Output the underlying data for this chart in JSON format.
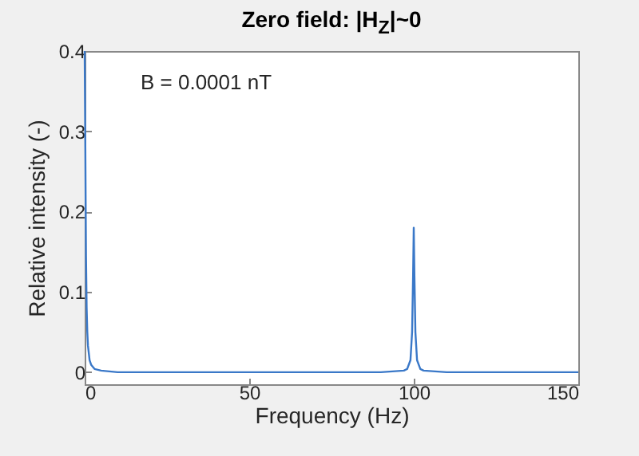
{
  "chart_data": {
    "type": "line",
    "title": "Zero field: |H$_{Z}$|~0",
    "xlabel": "Frequency (Hz)",
    "ylabel": "Relative intensity (-)",
    "annotations": [
      "B = 0.0001 nT"
    ],
    "x": [
      0,
      0.2,
      0.4,
      0.6,
      0.8,
      1,
      1.5,
      2,
      3,
      5,
      10,
      20,
      50,
      90,
      97,
      98,
      99,
      99.5,
      99.8,
      100,
      100.2,
      100.5,
      101,
      102,
      103,
      110,
      150
    ],
    "series": [
      {
        "color": "#3a78c8",
        "values": [
          0.4,
          0.28,
          0.145,
          0.08,
          0.05,
          0.033,
          0.015,
          0.009,
          0.004,
          0.002,
          0,
          0,
          0,
          0,
          0.002,
          0.004,
          0.015,
          0.05,
          0.12,
          0.18,
          0.12,
          0.05,
          0.015,
          0.004,
          0.002,
          0,
          0
        ]
      }
    ],
    "xlim": [
      0,
      150
    ],
    "xticks": [
      0,
      50,
      100,
      150
    ],
    "ylim": [
      -0.015,
      0.4
    ],
    "yticks": [
      0,
      0.1,
      0.2,
      0.3,
      0.4
    ]
  }
}
